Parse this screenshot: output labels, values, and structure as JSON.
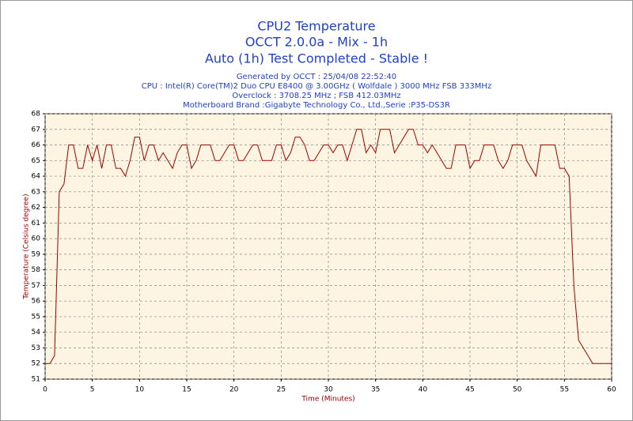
{
  "chart_data": {
    "type": "line",
    "title": [
      "CPU2 Temperature",
      "OCCT 2.0.0a - Mix - 1h",
      "Auto (1h) Test Completed - Stable !"
    ],
    "subtitle": [
      "Generated by OCCT : 25/04/08 22:52:40",
      "CPU : Intel(R) Core(TM)2 Duo CPU E8400 @ 3.00GHz ( Wolfdale ) 3000 MHz FSB 333MHz",
      "Overclock : 3708.25 MHz ; FSB 412.03MHz",
      "Motherboard Brand :Gigabyte Technology Co., Ltd.,Serie :P35-DS3R"
    ],
    "x_label": "Time (Minutes)",
    "y_label": "Temperature (Celsius degree)",
    "x": [
      0,
      0.5,
      1,
      1.5,
      2,
      2.5,
      3,
      3.5,
      4,
      4.5,
      5,
      5.5,
      6,
      6.5,
      7,
      7.5,
      8,
      8.5,
      9,
      9.5,
      10,
      10.5,
      11,
      11.5,
      12,
      12.5,
      13,
      13.5,
      14,
      14.5,
      15,
      15.5,
      16,
      16.5,
      17,
      17.5,
      18,
      18.5,
      19,
      19.5,
      20,
      20.5,
      21,
      21.5,
      22,
      22.5,
      23,
      23.5,
      24,
      24.5,
      25,
      25.5,
      26,
      26.5,
      27,
      27.5,
      28,
      28.5,
      29,
      29.5,
      30,
      30.5,
      31,
      31.5,
      32,
      32.5,
      33,
      33.5,
      34,
      34.5,
      35,
      35.5,
      36,
      36.5,
      37,
      37.5,
      38,
      38.5,
      39,
      39.5,
      40,
      40.5,
      41,
      41.5,
      42,
      42.5,
      43,
      43.5,
      44,
      44.5,
      45,
      45.5,
      46,
      46.5,
      47,
      47.5,
      48,
      48.5,
      49,
      49.5,
      50,
      50.5,
      51,
      51.5,
      52,
      52.5,
      53,
      53.5,
      54,
      54.5,
      55,
      55.5,
      56,
      56.5,
      57,
      57.5,
      58,
      58.5,
      59,
      59.5,
      60
    ],
    "values": [
      52,
      52,
      52.5,
      63,
      63.5,
      66,
      66,
      64.5,
      64.5,
      66,
      65,
      66,
      64.5,
      66,
      66,
      64.5,
      64.5,
      64,
      65,
      66.5,
      66.5,
      65,
      66,
      66,
      65,
      65.5,
      65,
      64.5,
      65.5,
      66,
      66,
      64.5,
      65,
      66,
      66,
      66,
      65,
      65,
      65.5,
      66,
      66,
      65,
      65,
      65.5,
      66,
      66,
      65,
      65,
      65,
      66,
      66,
      65,
      65.5,
      66.5,
      66.5,
      66,
      65,
      65,
      65.5,
      66,
      66,
      65.5,
      66,
      66,
      65,
      66,
      67,
      67,
      65.5,
      66,
      65.5,
      67,
      67,
      67,
      65.5,
      66,
      66.5,
      67,
      67,
      66,
      66,
      65.5,
      66,
      65.5,
      65,
      64.5,
      64.5,
      66,
      66,
      66,
      64.5,
      65,
      65,
      66,
      66,
      66,
      65,
      64.5,
      65,
      66,
      66,
      66,
      65,
      64.5,
      64,
      66,
      66,
      66,
      66,
      64.5,
      64.5,
      64,
      57,
      53.5,
      53,
      52.5,
      52,
      52,
      52,
      52,
      52
    ],
    "color": "#a00000",
    "xlim": [
      0,
      60
    ],
    "xticks": [
      0,
      5,
      10,
      15,
      20,
      25,
      30,
      35,
      40,
      45,
      50,
      55,
      60
    ],
    "ylim": [
      51,
      68
    ],
    "yticks": [
      51,
      52,
      53,
      54,
      55,
      56,
      57,
      58,
      59,
      60,
      61,
      62,
      63,
      64,
      65,
      66,
      67,
      68
    ],
    "grid": true
  }
}
